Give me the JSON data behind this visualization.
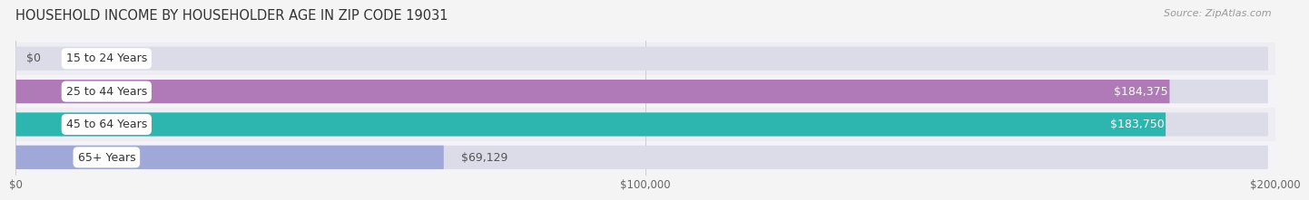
{
  "title": "HOUSEHOLD INCOME BY HOUSEHOLDER AGE IN ZIP CODE 19031",
  "source": "Source: ZipAtlas.com",
  "categories": [
    "15 to 24 Years",
    "25 to 44 Years",
    "45 to 64 Years",
    "65+ Years"
  ],
  "values": [
    0,
    184375,
    183750,
    69129
  ],
  "value_labels": [
    "$0",
    "$184,375",
    "$183,750",
    "$69,129"
  ],
  "bar_colors": [
    "#a8c0de",
    "#b07ab8",
    "#2db5b0",
    "#a0a8d8"
  ],
  "value_label_inside": [
    false,
    true,
    true,
    false
  ],
  "bg_color": "#f4f4f4",
  "bar_bg_color": "#e2e2e8",
  "bar_bg_color_alt": "#e8e8ee",
  "xlim": [
    0,
    200000
  ],
  "xtick_vals": [
    0,
    100000,
    200000
  ],
  "xtick_labels": [
    "$0",
    "$100,000",
    "$200,000"
  ],
  "title_fontsize": 10.5,
  "source_fontsize": 8,
  "bar_height": 0.72,
  "label_fontsize": 9,
  "category_fontsize": 9,
  "row_bg_colors": [
    "#f0f0f5",
    "#ebebf2",
    "#f0f0f5",
    "#ebebf2"
  ]
}
